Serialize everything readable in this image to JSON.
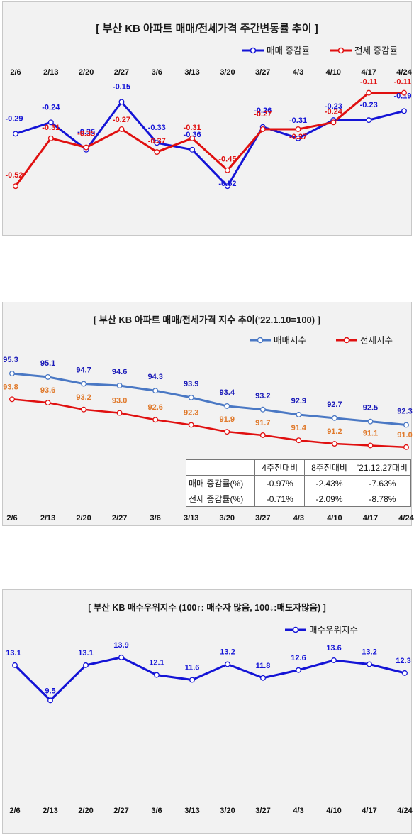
{
  "charts": {
    "weekly_change": {
      "title": "[ 부산  KB 아파트 매매/전세가격 주간변동률 추이 ]",
      "legend": [
        "매매 증감률",
        "전세 증감률"
      ]
    },
    "index": {
      "title": "[  부산  KB 아파트 매매/전세가격 지수 추이('22.1.10=100)  ]",
      "legend": [
        "매매지수",
        "전세지수"
      ],
      "table": {
        "headers": [
          "4주전대비",
          "8주전대비",
          "'21.12.27대비"
        ],
        "rows": [
          {
            "label": "매매 증감률(%)",
            "values": [
              "-0.97%",
              "-2.43%",
              "-7.63%"
            ]
          },
          {
            "label": "전세 증감률(%)",
            "values": [
              "-0.71%",
              "-2.09%",
              "-8.78%"
            ]
          }
        ]
      }
    },
    "buyer_index": {
      "title": "[  부산  KB 매수우위지수 (100↑: 매수자 많음, 100↓:매도자많음)  ]",
      "legend": [
        "매수우위지수"
      ]
    }
  },
  "chart_data": [
    {
      "type": "line",
      "title": "[ 부산  KB 아파트 매매/전세가격 주간변동률 추이 ]",
      "categories": [
        "2/6",
        "2/13",
        "2/20",
        "2/27",
        "3/6",
        "3/13",
        "3/20",
        "3/27",
        "4/3",
        "4/10",
        "4/17",
        "4/24"
      ],
      "series": [
        {
          "name": "매매 증감률",
          "color": "#1414d6",
          "values": [
            -0.29,
            -0.24,
            -0.36,
            -0.15,
            -0.33,
            -0.36,
            -0.52,
            -0.26,
            -0.31,
            -0.23,
            -0.23,
            -0.19
          ]
        },
        {
          "name": "전세 증감률",
          "color": "#e01010",
          "values": [
            -0.52,
            -0.31,
            -0.35,
            -0.27,
            -0.37,
            -0.31,
            -0.45,
            -0.27,
            -0.27,
            -0.24,
            -0.11,
            -0.11
          ]
        }
      ],
      "ylim": [
        -0.56,
        -0.08
      ],
      "legend_position": "top-right",
      "grid": false
    },
    {
      "type": "line",
      "title": "[  부산  KB 아파트 매매/전세가격 지수 추이('22.1.10=100)  ]",
      "categories": [
        "2/6",
        "2/13",
        "2/20",
        "2/27",
        "3/6",
        "3/13",
        "3/20",
        "3/27",
        "4/3",
        "4/10",
        "4/17",
        "4/24"
      ],
      "series": [
        {
          "name": "매매지수",
          "color": "#4a78c4",
          "label_color": "#1a1ab8",
          "values": [
            95.3,
            95.1,
            94.7,
            94.6,
            94.3,
            93.9,
            93.4,
            93.2,
            92.9,
            92.7,
            92.5,
            92.3
          ]
        },
        {
          "name": "전세지수",
          "color": "#e01010",
          "label_color": "#e07a2c",
          "values": [
            93.8,
            93.6,
            93.2,
            93.0,
            92.6,
            92.3,
            91.9,
            91.7,
            91.4,
            91.2,
            91.1,
            91.0
          ]
        }
      ],
      "ylim": [
        90.0,
        95.8
      ],
      "legend_position": "top-right",
      "grid": false
    },
    {
      "type": "line",
      "title": "[  부산  KB 매수우위지수 (100↑: 매수자 많음, 100↓:매도자많음)  ]",
      "categories": [
        "2/6",
        "2/13",
        "2/20",
        "2/27",
        "3/6",
        "3/13",
        "3/20",
        "3/27",
        "4/3",
        "4/10",
        "4/17",
        "4/24"
      ],
      "series": [
        {
          "name": "매수우위지수",
          "color": "#1414d6",
          "values": [
            13.1,
            9.5,
            13.1,
            13.9,
            12.1,
            11.6,
            13.2,
            11.8,
            12.6,
            13.6,
            13.2,
            12.3
          ]
        }
      ],
      "ylim": [
        0,
        16
      ],
      "legend_position": "top-right",
      "grid": false
    }
  ]
}
